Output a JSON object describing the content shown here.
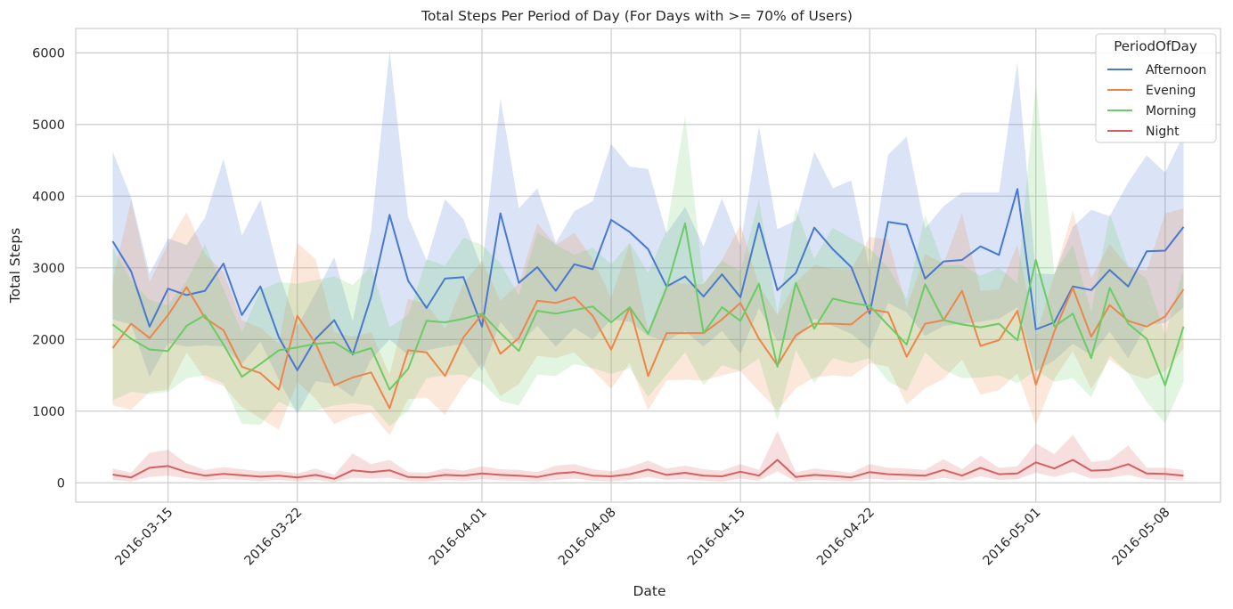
{
  "chart_data": {
    "type": "line",
    "title": "Total Steps Per Period of Day (For Days with >= 70% of Users)",
    "xlabel": "Date",
    "ylabel": "Total Steps",
    "x_start": "2016-03-12",
    "x_end": "2016-05-09",
    "xlim": [
      "2016-03-10",
      "2016-05-11"
    ],
    "ylim": [
      -270,
      6340
    ],
    "x_ticks": [
      "2016-03-15",
      "2016-03-22",
      "2016-04-01",
      "2016-04-08",
      "2016-04-15",
      "2016-04-22",
      "2016-05-01",
      "2016-05-08"
    ],
    "y_ticks": [
      0,
      1000,
      2000,
      3000,
      4000,
      5000,
      6000
    ],
    "grid": true,
    "legend_title": "PeriodOfDay",
    "legend_position": "top-right",
    "series": [
      {
        "name": "Afternoon",
        "color": "#4878d0",
        "values": [
          3370,
          2950,
          2180,
          2710,
          2620,
          2680,
          3060,
          2340,
          2740,
          2030,
          1570,
          2010,
          2270,
          1790,
          2600,
          3740,
          2820,
          2440,
          2850,
          2870,
          2180,
          3760,
          2790,
          3010,
          2680,
          3050,
          2980,
          3670,
          3500,
          3260,
          2740,
          2880,
          2600,
          2910,
          2590,
          3620,
          2690,
          2930,
          3560,
          3260,
          3010,
          2360,
          3640,
          3600,
          2850,
          3090,
          3110,
          3300,
          3180,
          4100,
          2140,
          2240,
          2740,
          2690,
          2970,
          2740,
          3230,
          3240,
          3570
        ],
        "lower": [
          2280,
          2210,
          1480,
          1950,
          1900,
          1920,
          1900,
          1660,
          1970,
          1440,
          960,
          1420,
          1380,
          1200,
          1720,
          2000,
          1780,
          1850,
          1900,
          1940,
          1560,
          2250,
          1930,
          2190,
          1900,
          2160,
          2000,
          2280,
          2250,
          2050,
          1980,
          2120,
          1900,
          2120,
          1800,
          2440,
          1980,
          2000,
          2290,
          2190,
          2080,
          1870,
          2510,
          2380,
          2050,
          2190,
          2220,
          2250,
          2290,
          2450,
          1560,
          1710,
          1940,
          1780,
          2110,
          1740,
          2210,
          2230,
          2450
        ],
        "upper": [
          4620,
          3980,
          2920,
          3410,
          3320,
          3700,
          4520,
          3450,
          3950,
          2930,
          2180,
          2650,
          3150,
          2250,
          3530,
          6030,
          3710,
          3100,
          3960,
          3680,
          2990,
          5370,
          3830,
          4110,
          3350,
          3790,
          3930,
          4730,
          4410,
          4380,
          3480,
          3850,
          3300,
          3970,
          3300,
          4970,
          3540,
          3660,
          4620,
          4110,
          4220,
          2960,
          4580,
          4830,
          3550,
          3860,
          4050,
          4050,
          4050,
          5870,
          2920,
          2910,
          3570,
          3810,
          3720,
          4190,
          4570,
          4330,
          4860
        ]
      },
      {
        "name": "Evening",
        "color": "#ee854a",
        "values": [
          1880,
          2220,
          2020,
          2340,
          2730,
          2300,
          2130,
          1620,
          1530,
          1300,
          2330,
          1940,
          1360,
          1470,
          1540,
          1040,
          1850,
          1820,
          1490,
          2030,
          2350,
          1800,
          2020,
          2540,
          2510,
          2590,
          2330,
          1860,
          2450,
          1490,
          2090,
          2090,
          2090,
          2280,
          2510,
          2010,
          1640,
          2060,
          2220,
          2220,
          2210,
          2420,
          2380,
          1760,
          2220,
          2270,
          2680,
          1910,
          1990,
          2400,
          1370,
          2110,
          2720,
          2040,
          2480,
          2260,
          2180,
          2320,
          2700
        ],
        "lower": [
          1080,
          1020,
          1270,
          1300,
          1820,
          1450,
          1350,
          1060,
          900,
          740,
          1410,
          1170,
          820,
          930,
          980,
          660,
          1170,
          1190,
          950,
          1360,
          1670,
          1210,
          1380,
          1770,
          1740,
          1820,
          1570,
          1310,
          1670,
          1010,
          1430,
          1440,
          1430,
          1500,
          1560,
          1280,
          1010,
          1320,
          1470,
          1500,
          1480,
          1670,
          1620,
          1090,
          1320,
          1450,
          1720,
          1230,
          1290,
          1530,
          810,
          1450,
          1840,
          1310,
          1720,
          1530,
          1450,
          1560,
          1870
        ],
        "upper": [
          2820,
          3950,
          2800,
          3340,
          3780,
          3190,
          2940,
          2270,
          2160,
          1940,
          3350,
          3120,
          2100,
          2040,
          2100,
          1510,
          2570,
          2490,
          2150,
          2780,
          3100,
          2540,
          2780,
          3620,
          3320,
          3490,
          3120,
          2580,
          3340,
          2120,
          2790,
          2780,
          2770,
          3110,
          3600,
          2760,
          2340,
          2800,
          3040,
          2980,
          2980,
          3430,
          3400,
          2450,
          3190,
          3060,
          3760,
          2680,
          2700,
          3330,
          2050,
          2900,
          3790,
          2860,
          3330,
          3010,
          2960,
          3760,
          3830
        ]
      },
      {
        "name": "Morning",
        "color": "#6acc64",
        "values": [
          2210,
          2010,
          1860,
          1840,
          2190,
          2340,
          1930,
          1480,
          1660,
          1850,
          1890,
          1940,
          1960,
          1800,
          1880,
          1300,
          1590,
          2260,
          2240,
          2290,
          2360,
          2090,
          1840,
          2400,
          2360,
          2410,
          2460,
          2240,
          2450,
          2080,
          2720,
          3620,
          2090,
          2450,
          2260,
          2780,
          1620,
          2790,
          2150,
          2570,
          2510,
          2470,
          2200,
          1930,
          2770,
          2270,
          2210,
          2170,
          2220,
          1990,
          3110,
          2180,
          2360,
          1740,
          2720,
          2220,
          2010,
          1360,
          2180
        ],
        "lower": [
          1150,
          1270,
          1240,
          1270,
          1460,
          1500,
          1390,
          820,
          810,
          1130,
          1010,
          1010,
          1080,
          1110,
          1080,
          790,
          1010,
          1460,
          1500,
          1510,
          1400,
          1140,
          1080,
          1510,
          1490,
          1660,
          1600,
          1520,
          1600,
          1200,
          1510,
          1820,
          1360,
          1640,
          1560,
          1740,
          870,
          1850,
          1390,
          1740,
          1670,
          1740,
          1420,
          1280,
          1820,
          1580,
          1460,
          1470,
          1500,
          1390,
          1570,
          1410,
          1460,
          1190,
          1780,
          1530,
          1130,
          830,
          1410
        ],
        "upper": [
          3280,
          2820,
          2550,
          2480,
          2810,
          3330,
          2700,
          2100,
          2690,
          2800,
          2780,
          2830,
          2880,
          2760,
          3020,
          2170,
          2340,
          3120,
          3030,
          3420,
          3320,
          3060,
          2620,
          3490,
          3330,
          3180,
          3280,
          3050,
          3350,
          2930,
          3530,
          5120,
          2780,
          3100,
          2950,
          3960,
          2360,
          3830,
          3130,
          3560,
          3410,
          3270,
          3000,
          2570,
          3740,
          3030,
          3040,
          2890,
          3000,
          2780,
          5590,
          2930,
          3320,
          2380,
          3760,
          3020,
          2850,
          2060,
          2990
        ]
      },
      {
        "name": "Night",
        "color": "#d65f5f",
        "values": [
          115,
          75,
          210,
          235,
          150,
          100,
          125,
          105,
          85,
          100,
          75,
          110,
          55,
          175,
          150,
          175,
          80,
          75,
          110,
          100,
          130,
          110,
          100,
          80,
          130,
          150,
          100,
          90,
          120,
          185,
          110,
          140,
          100,
          90,
          155,
          100,
          320,
          80,
          110,
          95,
          75,
          150,
          120,
          110,
          100,
          180,
          100,
          210,
          120,
          130,
          285,
          200,
          320,
          170,
          180,
          260,
          130,
          125,
          100
        ],
        "lower": [
          40,
          20,
          80,
          100,
          60,
          30,
          50,
          40,
          25,
          40,
          20,
          40,
          10,
          70,
          60,
          70,
          25,
          20,
          40,
          30,
          50,
          35,
          30,
          20,
          40,
          60,
          30,
          20,
          40,
          80,
          40,
          50,
          30,
          20,
          60,
          30,
          160,
          20,
          40,
          30,
          20,
          60,
          40,
          40,
          30,
          70,
          30,
          90,
          40,
          50,
          140,
          80,
          150,
          60,
          70,
          110,
          50,
          40,
          30
        ],
        "upper": [
          200,
          140,
          420,
          460,
          270,
          180,
          220,
          190,
          160,
          170,
          130,
          200,
          110,
          410,
          260,
          320,
          150,
          140,
          200,
          170,
          230,
          190,
          180,
          150,
          240,
          260,
          190,
          160,
          220,
          310,
          200,
          240,
          190,
          170,
          260,
          180,
          720,
          150,
          200,
          170,
          140,
          260,
          210,
          200,
          180,
          330,
          190,
          380,
          210,
          230,
          550,
          400,
          670,
          290,
          320,
          520,
          210,
          210,
          180
        ]
      }
    ]
  }
}
